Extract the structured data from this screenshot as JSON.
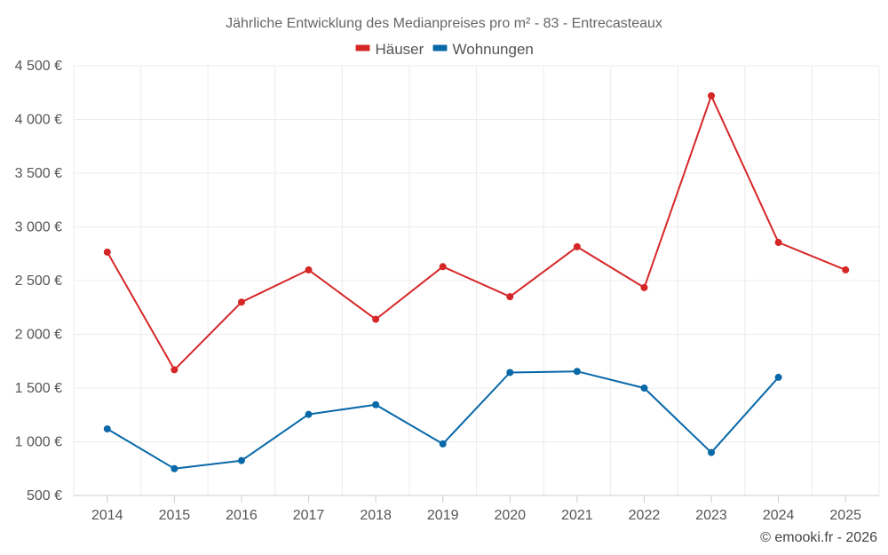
{
  "chart_data": {
    "type": "line",
    "title": "Jährliche Entwicklung des Medianpreises pro m² - 83 - Entrecasteaux",
    "xlabel": "",
    "ylabel": "",
    "categories": [
      "2014",
      "2015",
      "2016",
      "2017",
      "2018",
      "2019",
      "2020",
      "2021",
      "2022",
      "2023",
      "2024",
      "2025"
    ],
    "ylim": [
      500,
      4500
    ],
    "yticks": [
      500,
      1000,
      1500,
      2000,
      2500,
      3000,
      3500,
      4000,
      4500
    ],
    "ytick_labels": [
      "500 €",
      "1 000 €",
      "1 500 €",
      "2 000 €",
      "2 500 €",
      "3 000 €",
      "3 500 €",
      "4 000 €",
      "4 500 €"
    ],
    "grid": true,
    "legend_position": "top-center",
    "series": [
      {
        "name": "Häuser",
        "color": "#d62728",
        "values": [
          2765,
          1670,
          2300,
          2600,
          2140,
          2630,
          2350,
          2815,
          2435,
          4220,
          2855,
          2600
        ]
      },
      {
        "name": "Wohnungen",
        "color": "#0868a8",
        "values": [
          1120,
          750,
          825,
          1255,
          1345,
          980,
          1645,
          1655,
          1500,
          900,
          1600,
          null
        ]
      }
    ]
  },
  "credit": "© emooki.fr - 2026"
}
